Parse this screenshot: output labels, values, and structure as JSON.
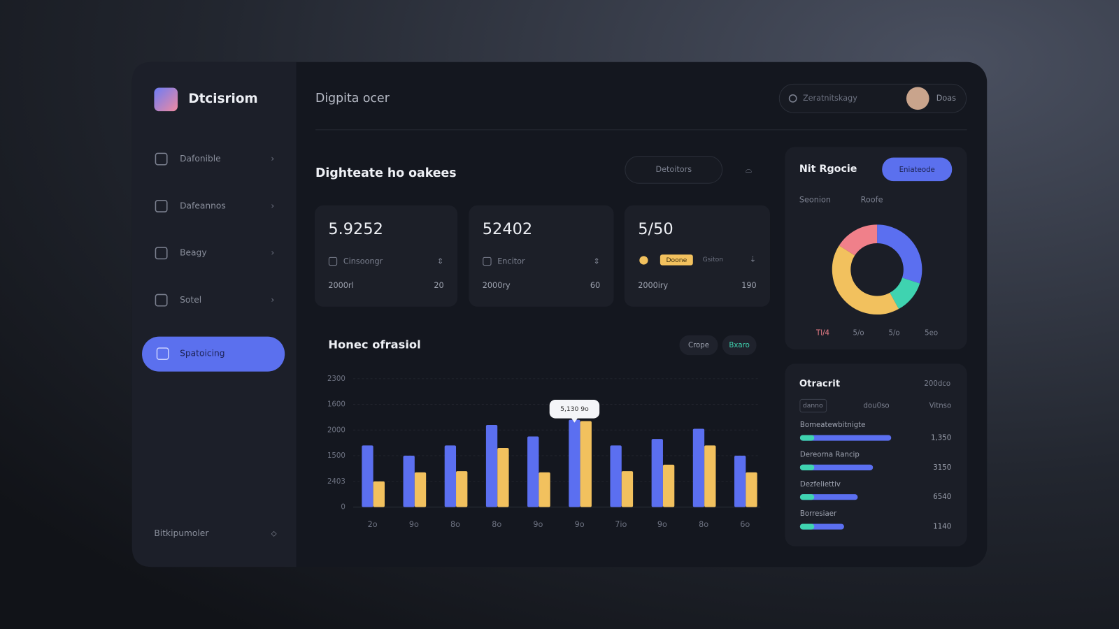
{
  "brand": "Dtcisriom",
  "sidebar": {
    "nav": [
      "Dafonible",
      "Dafeannos",
      "Beagy",
      "Sotel",
      "Spatoicing"
    ],
    "footer": "Bitkipumoler"
  },
  "header": {
    "title": "Digpita ocer",
    "search": "Zeratnitskagy",
    "user": "Doas"
  },
  "overview": {
    "title": "Dighteate ho oakees",
    "button": "Detoitors",
    "cards": [
      {
        "value": "5.9252",
        "label": "Cinsoongr",
        "period": "2000rl",
        "delta": "20"
      },
      {
        "value": "52402",
        "label": "Encitor",
        "period": "2000ry",
        "delta": "60"
      },
      {
        "value": "5/50",
        "badges": [
          "Doone",
          "Gsiton"
        ],
        "period": "2000iry",
        "delta": "190"
      }
    ]
  },
  "bar_chart": {
    "type": "bar",
    "title": "Honec ofrasiol",
    "toggles": [
      "Crope",
      "Bxaro"
    ],
    "y_labels": [
      "0",
      "2403",
      "1500",
      "2000",
      "1600",
      "2300"
    ],
    "categories": [
      "2o",
      "9o",
      "8o",
      "8o",
      "9o",
      "9o",
      "7io",
      "9o",
      "8o",
      "6o"
    ],
    "ylim": [
      0,
      5
    ],
    "series": [
      {
        "color": "#5b6ff0",
        "values": [
          2.4,
          2.0,
          2.4,
          3.2,
          2.75,
          3.4,
          2.4,
          2.65,
          3.05,
          2.0
        ]
      },
      {
        "color": "#f2c15e",
        "values": [
          1.0,
          1.35,
          1.4,
          2.3,
          1.35,
          3.35,
          1.4,
          1.65,
          2.4,
          1.35
        ]
      }
    ],
    "tooltip": {
      "index": 5,
      "text": "5,130 9o"
    }
  },
  "donut_panel": {
    "title": "Nit Rgocie",
    "button": "Eniateode",
    "subheads": [
      "Seonion",
      "Roofe"
    ],
    "type": "pie",
    "segments": [
      {
        "name": "Tl/4",
        "color": "#f0808a",
        "value": 16
      },
      {
        "name": "5/o",
        "color": "#5b6ff0",
        "value": 30
      },
      {
        "name": "5/o",
        "color": "#3fd3b0",
        "value": 12
      },
      {
        "name": "5eo",
        "color": "#f2c15e",
        "value": 42
      }
    ]
  },
  "list_panel": {
    "title": "Otracrit",
    "meta": "200dco",
    "tabs": [
      "danno",
      "dou0so",
      "Vitnso"
    ],
    "rows": [
      {
        "name": "Bomeatewbitnigte",
        "value": "1,350",
        "fill": 60
      },
      {
        "name": "Dereorna Rancip",
        "value": "3150",
        "fill": 48
      },
      {
        "name": "Dezfeliettiv",
        "value": "6540",
        "fill": 38
      },
      {
        "name": "Borresiaer",
        "value": "1140",
        "fill": 29
      }
    ]
  }
}
